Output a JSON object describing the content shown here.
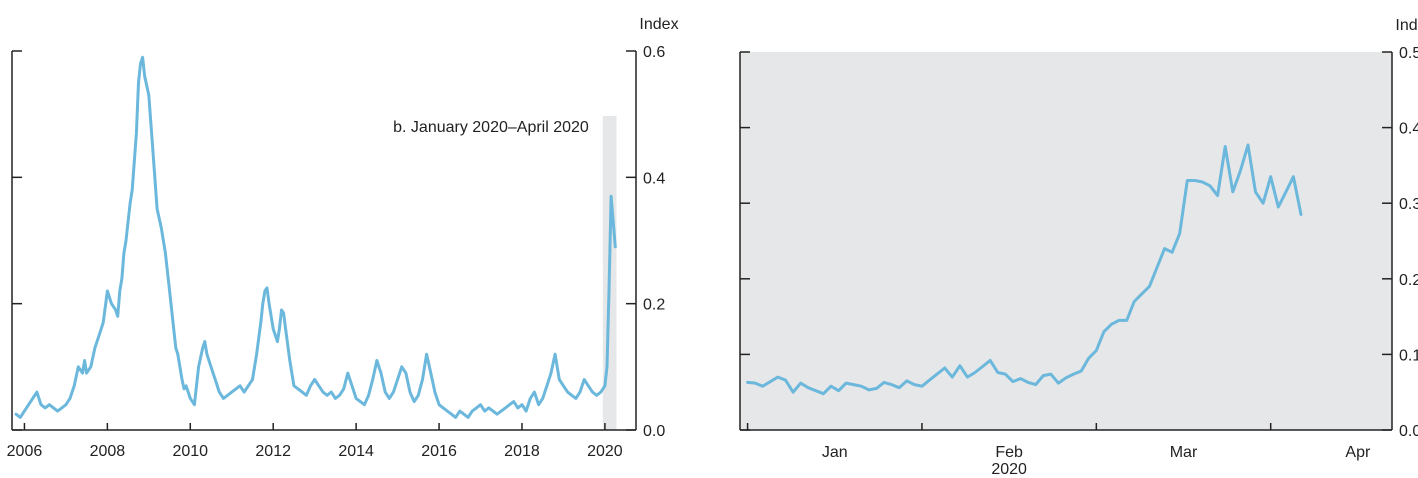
{
  "chart_data": [
    {
      "type": "line",
      "title": "",
      "ylabel": "Index",
      "ylim": [
        0.0,
        0.6
      ],
      "xlim": [
        2005.7,
        2020.75
      ],
      "xticks": [
        2006,
        2008,
        2010,
        2012,
        2014,
        2016,
        2018,
        2020
      ],
      "xtick_labels": [
        "2006",
        "2008",
        "2010",
        "2012",
        "2014",
        "2016",
        "2018",
        "2020"
      ],
      "yticks": [
        0.0,
        0.2,
        0.4,
        0.6
      ],
      "ytick_labels": [
        "0.0",
        "0.2",
        "0.4",
        "0.6"
      ],
      "line_color": "#6BB8DC",
      "annotation": {
        "text": "b. January 2020–April 2020",
        "x_range": [
          2019.95,
          2020.28
        ],
        "shade_color": "#E6E7E9"
      },
      "series": [
        {
          "x": [
            2005.8,
            2005.9,
            2006.0,
            2006.1,
            2006.2,
            2006.3,
            2006.4,
            2006.5,
            2006.6,
            2006.7,
            2006.8,
            2006.9,
            2007.0,
            2007.1,
            2007.2,
            2007.3,
            2007.4,
            2007.45,
            2007.5,
            2007.6,
            2007.7,
            2007.8,
            2007.9,
            2008.0,
            2008.1,
            2008.2,
            2008.25,
            2008.3,
            2008.35,
            2008.4,
            2008.45,
            2008.5,
            2008.55,
            2008.6,
            2008.7,
            2008.75,
            2008.8,
            2008.85,
            2008.9,
            2009.0,
            2009.1,
            2009.2,
            2009.3,
            2009.4,
            2009.5,
            2009.6,
            2009.65,
            2009.7,
            2009.75,
            2009.8,
            2009.85,
            2009.9,
            2010.0,
            2010.1,
            2010.2,
            2010.3,
            2010.35,
            2010.4,
            2010.5,
            2010.6,
            2010.7,
            2010.8,
            2010.9,
            2011.0,
            2011.1,
            2011.2,
            2011.3,
            2011.4,
            2011.5,
            2011.6,
            2011.7,
            2011.75,
            2011.8,
            2011.85,
            2011.9,
            2012.0,
            2012.1,
            2012.15,
            2012.2,
            2012.25,
            2012.3,
            2012.4,
            2012.5,
            2012.6,
            2012.7,
            2012.8,
            2012.9,
            2013.0,
            2013.1,
            2013.2,
            2013.3,
            2013.4,
            2013.5,
            2013.6,
            2013.7,
            2013.8,
            2013.9,
            2014.0,
            2014.1,
            2014.2,
            2014.3,
            2014.4,
            2014.5,
            2014.6,
            2014.7,
            2014.8,
            2014.9,
            2015.0,
            2015.1,
            2015.2,
            2015.3,
            2015.4,
            2015.5,
            2015.6,
            2015.7,
            2015.8,
            2015.9,
            2016.0,
            2016.1,
            2016.2,
            2016.3,
            2016.4,
            2016.5,
            2016.6,
            2016.7,
            2016.8,
            2016.9,
            2017.0,
            2017.1,
            2017.2,
            2017.3,
            2017.4,
            2017.5,
            2017.6,
            2017.7,
            2017.8,
            2017.9,
            2018.0,
            2018.1,
            2018.2,
            2018.3,
            2018.4,
            2018.5,
            2018.6,
            2018.7,
            2018.8,
            2018.9,
            2019.0,
            2019.1,
            2019.2,
            2019.3,
            2019.4,
            2019.5,
            2019.6,
            2019.7,
            2019.8,
            2019.9,
            2020.0,
            2020.05,
            2020.1,
            2020.15,
            2020.2,
            2020.25
          ],
          "y": [
            0.025,
            0.02,
            0.03,
            0.04,
            0.05,
            0.06,
            0.04,
            0.035,
            0.04,
            0.035,
            0.03,
            0.035,
            0.04,
            0.05,
            0.07,
            0.1,
            0.09,
            0.11,
            0.09,
            0.1,
            0.13,
            0.15,
            0.17,
            0.22,
            0.2,
            0.19,
            0.18,
            0.22,
            0.24,
            0.28,
            0.3,
            0.33,
            0.36,
            0.38,
            0.47,
            0.55,
            0.58,
            0.59,
            0.56,
            0.53,
            0.44,
            0.35,
            0.32,
            0.28,
            0.22,
            0.16,
            0.13,
            0.12,
            0.1,
            0.08,
            0.065,
            0.07,
            0.05,
            0.04,
            0.1,
            0.13,
            0.14,
            0.12,
            0.1,
            0.08,
            0.06,
            0.05,
            0.055,
            0.06,
            0.065,
            0.07,
            0.06,
            0.07,
            0.08,
            0.12,
            0.17,
            0.2,
            0.22,
            0.225,
            0.2,
            0.16,
            0.14,
            0.16,
            0.19,
            0.185,
            0.16,
            0.11,
            0.07,
            0.065,
            0.06,
            0.055,
            0.07,
            0.08,
            0.07,
            0.06,
            0.055,
            0.06,
            0.05,
            0.055,
            0.065,
            0.09,
            0.07,
            0.05,
            0.045,
            0.04,
            0.055,
            0.08,
            0.11,
            0.09,
            0.06,
            0.05,
            0.06,
            0.08,
            0.1,
            0.09,
            0.06,
            0.045,
            0.055,
            0.08,
            0.12,
            0.09,
            0.06,
            0.04,
            0.035,
            0.03,
            0.025,
            0.02,
            0.03,
            0.025,
            0.02,
            0.03,
            0.035,
            0.04,
            0.03,
            0.035,
            0.03,
            0.025,
            0.03,
            0.035,
            0.04,
            0.045,
            0.035,
            0.04,
            0.03,
            0.05,
            0.06,
            0.04,
            0.05,
            0.07,
            0.09,
            0.12,
            0.08,
            0.07,
            0.06,
            0.055,
            0.05,
            0.06,
            0.08,
            0.07,
            0.06,
            0.055,
            0.06,
            0.07,
            0.1,
            0.22,
            0.37,
            0.33,
            0.29
          ]
        }
      ]
    },
    {
      "type": "line",
      "title": "",
      "xlabel": "2020",
      "ylabel": "Index",
      "ylim": [
        0.0,
        0.5
      ],
      "xlim": [
        -1,
        85
      ],
      "xticks": [
        0,
        23,
        46,
        69,
        92
      ],
      "category_ticks": [
        11.5,
        34.5,
        57.5,
        80.5
      ],
      "xtick_labels": [
        "Jan",
        "Feb",
        "Mar",
        "Apr"
      ],
      "yticks": [
        0.0,
        0.1,
        0.2,
        0.3,
        0.4,
        0.5
      ],
      "ytick_labels": [
        "0.0",
        "0.1",
        "0.2",
        "0.3",
        "0.4",
        "0.5"
      ],
      "line_color": "#6BB8DC",
      "background_color": "#E6E7E9",
      "series": [
        {
          "x": [
            0,
            1,
            2,
            3,
            4,
            5,
            6,
            7,
            8,
            9,
            10,
            11,
            12,
            13,
            14,
            15,
            16,
            17,
            18,
            19,
            20,
            21,
            22,
            23,
            24,
            25,
            26,
            27,
            28,
            29,
            30,
            31,
            32,
            33,
            34,
            35,
            36,
            37,
            38,
            39,
            40,
            41,
            42,
            43,
            44,
            45,
            46,
            47,
            48,
            49,
            50,
            51,
            52,
            53,
            54,
            55,
            56,
            57,
            58,
            59,
            60,
            61,
            62,
            63,
            64,
            65,
            66,
            67,
            68,
            69,
            70,
            71,
            72,
            73
          ],
          "y": [
            0.063,
            0.062,
            0.058,
            0.064,
            0.07,
            0.066,
            0.05,
            0.062,
            0.056,
            0.052,
            0.048,
            0.058,
            0.052,
            0.062,
            0.06,
            0.058,
            0.053,
            0.055,
            0.063,
            0.06,
            0.056,
            0.065,
            0.06,
            0.058,
            0.066,
            0.074,
            0.082,
            0.07,
            0.085,
            0.07,
            0.076,
            0.084,
            0.092,
            0.076,
            0.074,
            0.064,
            0.068,
            0.063,
            0.06,
            0.072,
            0.074,
            0.062,
            0.069,
            0.074,
            0.078,
            0.095,
            0.105,
            0.13,
            0.14,
            0.145,
            0.145,
            0.17,
            0.18,
            0.19,
            0.215,
            0.24,
            0.235,
            0.26,
            0.33,
            0.33,
            0.328,
            0.323,
            0.31,
            0.375,
            0.315,
            0.343,
            0.377,
            0.315,
            0.3,
            0.335,
            0.295,
            0.315,
            0.335,
            0.285
          ]
        }
      ]
    }
  ]
}
